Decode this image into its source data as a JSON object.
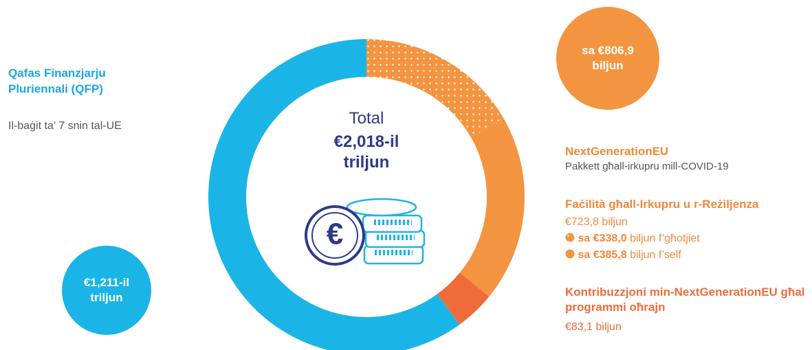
{
  "chart_data": {
    "type": "donut",
    "total_label": "Total",
    "total_value": "€2,018-il triljun",
    "values": [
      338.0,
      385.8,
      83.1,
      1211
    ],
    "value_labels": [
      "sa €338,0",
      "sa €385,8",
      "€83,1 biljun",
      "€1,211-il triljun"
    ],
    "colors": [
      "#f39540",
      "#f39540",
      "#ef6b3a",
      "#1ab5e6"
    ],
    "patterned": [
      true,
      false,
      false,
      false
    ],
    "mff_title": "Qafas Finanzjarju Pluriennali (QFP)",
    "mff_subtitle": "Il-baġit ta’ 7 snin tal-UE",
    "ngeu_total": "sa €806,9 biljun",
    "ngeu_title": "NextGenerationEU",
    "ngeu_subtitle": "Pakkett għall-irkupru mill-COVID-19",
    "rrf_title": "Faċilità għall-Irkupru u r-Reżiljenza",
    "rrf_amount": "€723,8 biljun",
    "grants_suffix": " biljun f’għotjiet",
    "loans_suffix": " biljun f’self",
    "other_title": "Kontribuzzjoni min-NextGenerationEU għal programmi oħrajn"
  }
}
